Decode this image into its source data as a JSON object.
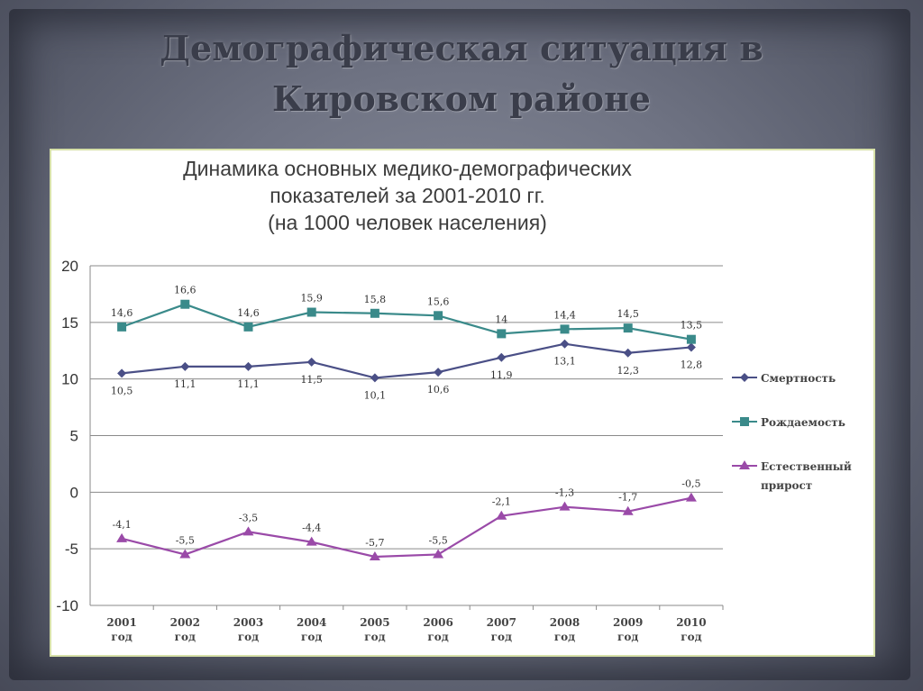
{
  "slide": {
    "title": "Демографическая ситуация в\nКировском районе"
  },
  "chart_data": {
    "type": "line",
    "title_lines": [
      "Динамика основных медико-демографических",
      "показателей за 2001-2010 гг.",
      "(на 1000 человек населения)"
    ],
    "categories": [
      [
        "2001",
        "год"
      ],
      [
        "2002",
        "год"
      ],
      [
        "2003",
        "год"
      ],
      [
        "2004",
        "год"
      ],
      [
        "2005",
        "год"
      ],
      [
        "2006",
        "год"
      ],
      [
        "2007",
        "год"
      ],
      [
        "2008",
        "год"
      ],
      [
        "2009",
        "год"
      ],
      [
        "2010",
        "год"
      ]
    ],
    "ylim": [
      -10,
      20
    ],
    "yticks": [
      20,
      15,
      10,
      5,
      0,
      -5,
      -10
    ],
    "grid": true,
    "legend_position": "right",
    "series": [
      {
        "name": "Смертность",
        "color": "#4a4f86",
        "marker": "diamond",
        "values": [
          10.5,
          11.1,
          11.1,
          11.5,
          10.1,
          10.6,
          11.9,
          13.1,
          12.3,
          12.8
        ],
        "labels": [
          "10,5",
          "11,1",
          "11,1",
          "11,5",
          "10,1",
          "10,6",
          "11,9",
          "13,1",
          "12,3",
          "12,8"
        ],
        "label_side": "below"
      },
      {
        "name": "Рождаемость",
        "color": "#3a8a8a",
        "marker": "square",
        "values": [
          14.6,
          16.6,
          14.6,
          15.9,
          15.8,
          15.6,
          14,
          14.4,
          14.5,
          13.5
        ],
        "labels": [
          "14,6",
          "16,6",
          "14,6",
          "15,9",
          "15,8",
          "15,6",
          "14",
          "14,4",
          "14,5",
          "13,5"
        ],
        "label_side": "above"
      },
      {
        "name": "Естественный прирост",
        "color": "#9a4aa8",
        "marker": "triangle",
        "values": [
          -4.1,
          -5.5,
          -3.5,
          -4.4,
          -5.7,
          -5.5,
          -2.1,
          -1.3,
          -1.7,
          -0.5
        ],
        "labels": [
          "-4,1",
          "-5,5",
          "-3,5",
          "-4,4",
          "-5,7",
          "-5,5",
          "-2,1",
          "-1,3",
          "-1,7",
          "-0,5"
        ],
        "label_side": "above"
      }
    ]
  }
}
